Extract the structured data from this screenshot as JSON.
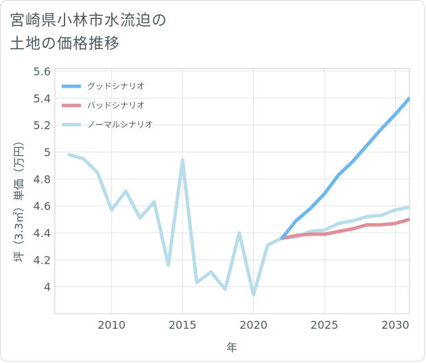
{
  "title_lines": [
    "宮崎県小林市水流迫の",
    "土地の価格推移"
  ],
  "chart_data": {
    "type": "line",
    "title": "宮崎県小林市水流迫の土地の価格推移",
    "xlabel": "年",
    "ylabel": "坪（3.3㎡）単価（万円）",
    "xlim": [
      2006,
      2031
    ],
    "ylim": [
      3.8,
      5.62
    ],
    "x_ticks": [
      2010,
      2015,
      2020,
      2025,
      2030
    ],
    "x_tick_labels": [
      "2010",
      "2015",
      "2020",
      "2025",
      "2030"
    ],
    "y_ticks": [
      4,
      4.2,
      4.4,
      4.6,
      4.8,
      5,
      5.2,
      5.4,
      5.6
    ],
    "y_tick_labels": [
      "4",
      "4.2",
      "4.4",
      "4.6",
      "4.8",
      "5",
      "5.2",
      "5.4",
      "5.6"
    ],
    "grid": true,
    "legend_position": "top-left",
    "series": [
      {
        "name": "グッドシナリオ",
        "color": "#6cb8ec",
        "x": [
          2022,
          2023,
          2024,
          2025,
          2026,
          2027,
          2028,
          2029,
          2030,
          2031
        ],
        "values": [
          4.36,
          4.49,
          4.58,
          4.69,
          4.83,
          4.93,
          5.05,
          5.17,
          5.28,
          5.4
        ]
      },
      {
        "name": "バッドシナリオ",
        "color": "#e08f98",
        "x": [
          2022,
          2023,
          2024,
          2025,
          2026,
          2027,
          2028,
          2029,
          2030,
          2031
        ],
        "values": [
          4.36,
          4.38,
          4.39,
          4.39,
          4.41,
          4.43,
          4.46,
          4.46,
          4.47,
          4.5
        ]
      },
      {
        "name": "ノーマルシナリオ",
        "color": "#b9dcea",
        "x": [
          2007,
          2008,
          2009,
          2010,
          2011,
          2012,
          2013,
          2014,
          2015,
          2016,
          2017,
          2018,
          2019,
          2020,
          2021,
          2022,
          2023,
          2024,
          2025,
          2026,
          2027,
          2028,
          2029,
          2030,
          2031
        ],
        "values": [
          4.98,
          4.95,
          4.85,
          4.57,
          4.71,
          4.51,
          4.63,
          4.16,
          4.94,
          4.03,
          4.11,
          3.98,
          4.4,
          3.94,
          4.31,
          4.36,
          4.37,
          4.41,
          4.42,
          4.47,
          4.49,
          4.52,
          4.53,
          4.57,
          4.59
        ]
      }
    ],
    "legend_draw_order": [
      0,
      1,
      2
    ],
    "series_draw_order": [
      2,
      1,
      0
    ]
  }
}
